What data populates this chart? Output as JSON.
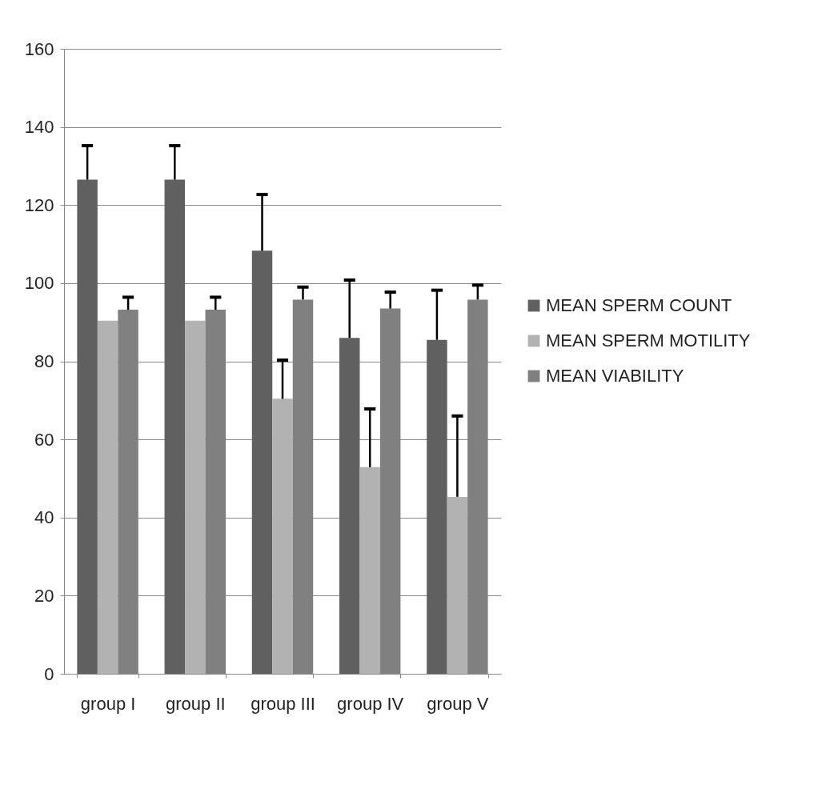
{
  "chart_data": {
    "type": "bar",
    "categories": [
      "group I",
      "group II",
      "group III",
      "group IV",
      "group V"
    ],
    "series": [
      {
        "name": "MEAN SPERM COUNT",
        "color": "#606060",
        "values": [
          126.5,
          126.5,
          108.3,
          86.0,
          85.5
        ],
        "errors": [
          [
            126.5,
            135.2
          ],
          [
            126.5,
            135.2
          ],
          [
            108.3,
            122.7
          ],
          [
            86.0,
            100.8
          ],
          [
            85.5,
            98.2
          ]
        ]
      },
      {
        "name": "MEAN SPERM MOTILITY",
        "color": "#b2b2b2",
        "values": [
          90.4,
          90.4,
          70.4,
          52.9,
          45.3
        ],
        "errors": [
          null,
          null,
          [
            70.4,
            80.3
          ],
          [
            52.9,
            67.8
          ],
          [
            45.3,
            66.0
          ]
        ]
      },
      {
        "name": "MEAN VIABILITY",
        "color": "#808080",
        "values": [
          93.2,
          93.2,
          95.8,
          93.5,
          95.8
        ],
        "errors": [
          [
            93.2,
            96.4
          ],
          [
            93.2,
            96.4
          ],
          [
            95.8,
            99.0
          ],
          [
            93.5,
            97.7
          ],
          [
            95.8,
            99.5
          ]
        ]
      }
    ],
    "ylim": [
      0,
      160
    ],
    "yticks": [
      0,
      20,
      40,
      60,
      80,
      100,
      120,
      140,
      160
    ],
    "grid": "y",
    "legend": "right"
  }
}
